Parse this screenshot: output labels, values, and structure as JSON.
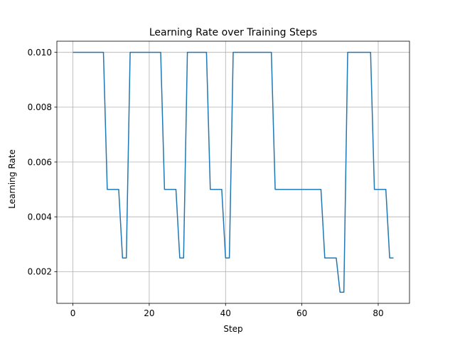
{
  "chart_data": {
    "type": "line",
    "title": "Learning Rate over Training Steps",
    "xlabel": "Step",
    "ylabel": "Learning Rate",
    "xlim": [
      -4.2,
      88.2
    ],
    "ylim": [
      0.00084375,
      0.01040625
    ],
    "xticks": [
      0,
      20,
      40,
      60,
      80
    ],
    "yticks": [
      0.002,
      0.004,
      0.006,
      0.008,
      0.01
    ],
    "xtick_labels": [
      "0",
      "20",
      "40",
      "60",
      "80"
    ],
    "ytick_labels": [
      "0.002",
      "0.004",
      "0.006",
      "0.008",
      "0.010"
    ],
    "grid": true,
    "series": [
      {
        "color": "#1f77b4",
        "x": [
          0,
          1,
          2,
          3,
          4,
          5,
          6,
          7,
          8,
          9,
          10,
          11,
          12,
          13,
          14,
          15,
          16,
          17,
          18,
          19,
          20,
          21,
          22,
          23,
          24,
          25,
          26,
          27,
          28,
          29,
          30,
          31,
          32,
          33,
          34,
          35,
          36,
          37,
          38,
          39,
          40,
          41,
          42,
          43,
          44,
          45,
          46,
          47,
          48,
          49,
          50,
          51,
          52,
          53,
          54,
          55,
          56,
          57,
          58,
          59,
          60,
          61,
          62,
          63,
          64,
          65,
          66,
          67,
          68,
          69,
          70,
          71,
          72,
          73,
          74,
          75,
          76,
          77,
          78,
          79,
          80,
          81,
          82,
          83,
          84
        ],
        "y": [
          0.01,
          0.01,
          0.01,
          0.01,
          0.01,
          0.01,
          0.01,
          0.01,
          0.01,
          0.005,
          0.005,
          0.005,
          0.005,
          0.0025,
          0.0025,
          0.01,
          0.01,
          0.01,
          0.01,
          0.01,
          0.01,
          0.01,
          0.01,
          0.01,
          0.005,
          0.005,
          0.005,
          0.005,
          0.0025,
          0.0025,
          0.01,
          0.01,
          0.01,
          0.01,
          0.01,
          0.01,
          0.005,
          0.005,
          0.005,
          0.005,
          0.0025,
          0.0025,
          0.01,
          0.01,
          0.01,
          0.01,
          0.01,
          0.01,
          0.01,
          0.01,
          0.01,
          0.01,
          0.01,
          0.005,
          0.005,
          0.005,
          0.005,
          0.005,
          0.005,
          0.005,
          0.005,
          0.005,
          0.005,
          0.005,
          0.005,
          0.005,
          0.0025,
          0.0025,
          0.0025,
          0.0025,
          0.00125,
          0.00125,
          0.01,
          0.01,
          0.01,
          0.01,
          0.01,
          0.01,
          0.01,
          0.005,
          0.005,
          0.005,
          0.005,
          0.0025,
          0.0025
        ]
      }
    ]
  }
}
